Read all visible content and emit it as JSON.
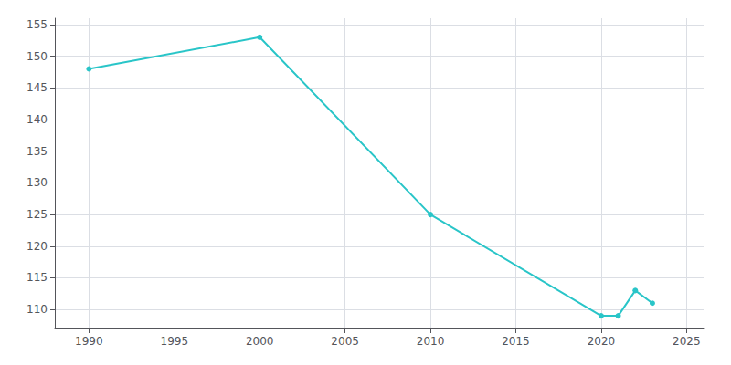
{
  "chart_data": {
    "type": "line",
    "x": [
      1990,
      2000,
      2010,
      2020,
      2021,
      2022,
      2023
    ],
    "values": [
      148,
      153,
      125,
      109,
      109,
      113,
      111
    ],
    "color": "#29c5c8",
    "marker": "circle",
    "xlim": [
      1988,
      2026
    ],
    "xticks": [
      1990,
      1995,
      2000,
      2005,
      2010,
      2015,
      2020,
      2025
    ],
    "ylim": [
      107,
      156
    ],
    "yticks": [
      110,
      115,
      120,
      125,
      130,
      135,
      140,
      145,
      150,
      155
    ],
    "grid": true
  }
}
